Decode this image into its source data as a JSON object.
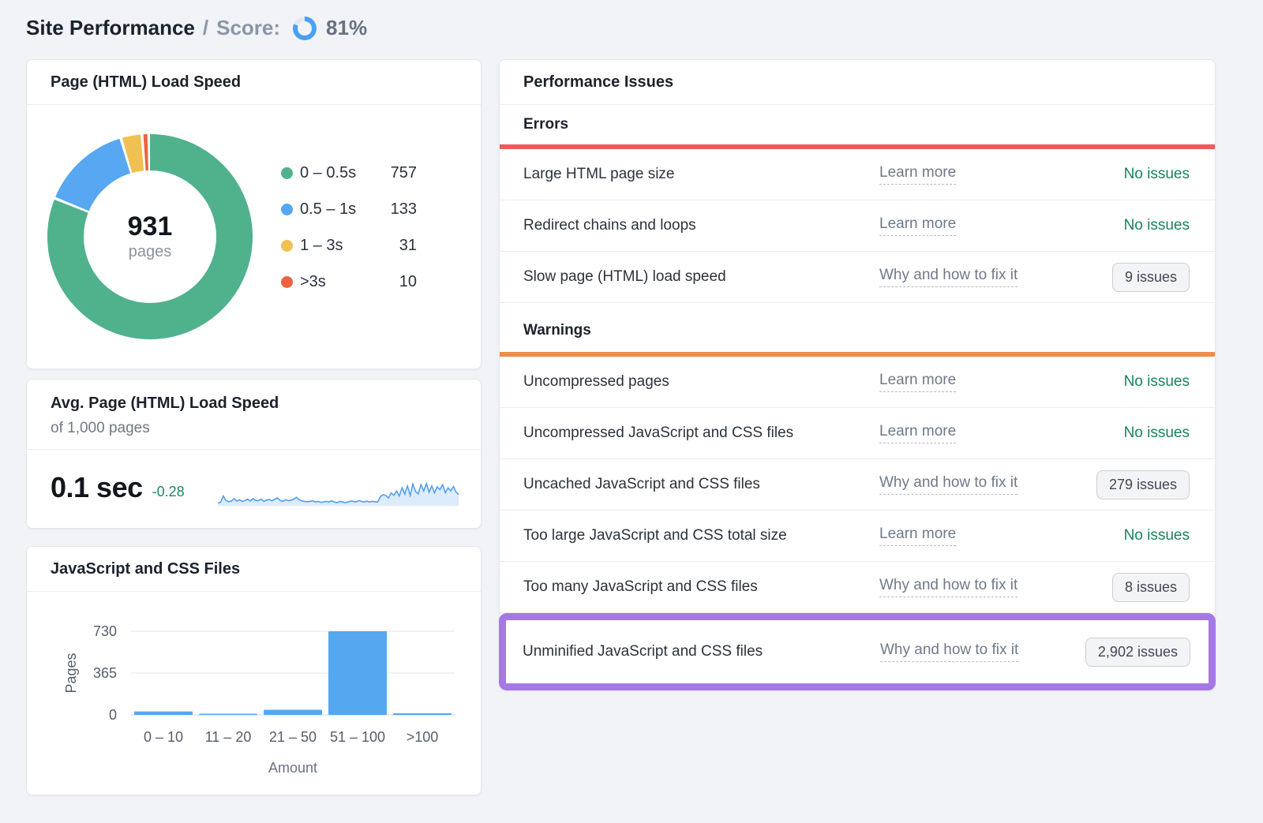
{
  "header": {
    "title": "Site Performance",
    "separator": "/",
    "score_label": "Score:",
    "score_value": "81%",
    "score_percent": 81,
    "score_ring_color": "#4aa0f5",
    "score_ring_track": "#e4e8ee"
  },
  "left_column": {
    "load_speed_card": {
      "title": "Page (HTML) Load Speed",
      "center_value": "931",
      "center_label": "pages"
    },
    "avg_card": {
      "title": "Avg. Page (HTML) Load Speed",
      "subtitle": "of 1,000 pages",
      "value": "0.1 sec",
      "delta": "-0.28",
      "delta_color": "#1d8763"
    },
    "files_card": {
      "title": "JavaScript and CSS Files"
    }
  },
  "chart_data": [
    {
      "id": "page-load-speed-donut",
      "type": "pie",
      "title": "Page (HTML) Load Speed",
      "center_value": 931,
      "center_label": "pages",
      "segments": [
        {
          "label": "0 – 0.5s",
          "value": 757,
          "color": "#4fb28c"
        },
        {
          "label": "0.5 – 1s",
          "value": 133,
          "color": "#57a7f2"
        },
        {
          "label": "1 – 3s",
          "value": 31,
          "color": "#f0c053"
        },
        {
          "label": ">3s",
          "value": 10,
          "color": "#eb6341"
        }
      ]
    },
    {
      "id": "avg-load-speed-trend",
      "type": "area",
      "title": "Avg. Page (HTML) Load Speed trend",
      "line_color": "#4d9ef2",
      "fill_color": "#ddebfb",
      "values": [
        4,
        6,
        26,
        12,
        8,
        10,
        18,
        10,
        14,
        9,
        12,
        16,
        10,
        18,
        12,
        11,
        16,
        9,
        13,
        15,
        11,
        16,
        20,
        12,
        9,
        14,
        11,
        13,
        16,
        22,
        14,
        11,
        9,
        8,
        9,
        11,
        7,
        9,
        6,
        7,
        9,
        7,
        11,
        7,
        5,
        9,
        7,
        5,
        7,
        10,
        9,
        7,
        12,
        9,
        7,
        10,
        7,
        9,
        8,
        7,
        24,
        30,
        28,
        20,
        36,
        28,
        42,
        26,
        52,
        32,
        58,
        28,
        64,
        40,
        33,
        62,
        42,
        66,
        38,
        58,
        36,
        55,
        46,
        62,
        36,
        52,
        42,
        56,
        38,
        30
      ]
    },
    {
      "id": "js-css-files-histogram",
      "type": "bar",
      "categories": [
        "0 – 10",
        "11 – 20",
        "21 – 50",
        "51 – 100",
        ">100"
      ],
      "values": [
        30,
        5,
        45,
        730,
        15
      ],
      "title": "JavaScript and CSS Files",
      "xlabel": "Amount",
      "ylabel": "Pages",
      "yticks": [
        0,
        365,
        730
      ],
      "ylim": [
        0,
        780
      ],
      "bar_color": "#55a7f0"
    }
  ],
  "issues_panel": {
    "title": "Performance Issues",
    "status_color": "#17835f",
    "highlight_color": "#a678e6",
    "sections": [
      {
        "label": "Errors",
        "bar_color": "#ed5c5c",
        "rows": [
          {
            "name": "Large HTML page size",
            "link": "Learn more",
            "status": "No issues"
          },
          {
            "name": "Redirect chains and loops",
            "link": "Learn more",
            "status": "No issues"
          },
          {
            "name": "Slow page (HTML) load speed",
            "link": "Why and how to fix it",
            "badge": "9 issues"
          }
        ]
      },
      {
        "label": "Warnings",
        "bar_color": "#ee8d49",
        "rows": [
          {
            "name": "Uncompressed pages",
            "link": "Learn more",
            "status": "No issues"
          },
          {
            "name": "Uncompressed JavaScript and CSS files",
            "link": "Learn more",
            "status": "No issues"
          },
          {
            "name": "Uncached JavaScript and CSS files",
            "link": "Why and how to fix it",
            "badge": "279 issues"
          },
          {
            "name": "Too large JavaScript and CSS total size",
            "link": "Learn more",
            "status": "No issues"
          },
          {
            "name": "Too many JavaScript and CSS files",
            "link": "Why and how to fix it",
            "badge": "8 issues"
          },
          {
            "name": "Unminified JavaScript and CSS files",
            "link": "Why and how to fix it",
            "badge": "2,902 issues",
            "highlighted": true
          }
        ]
      }
    ]
  }
}
